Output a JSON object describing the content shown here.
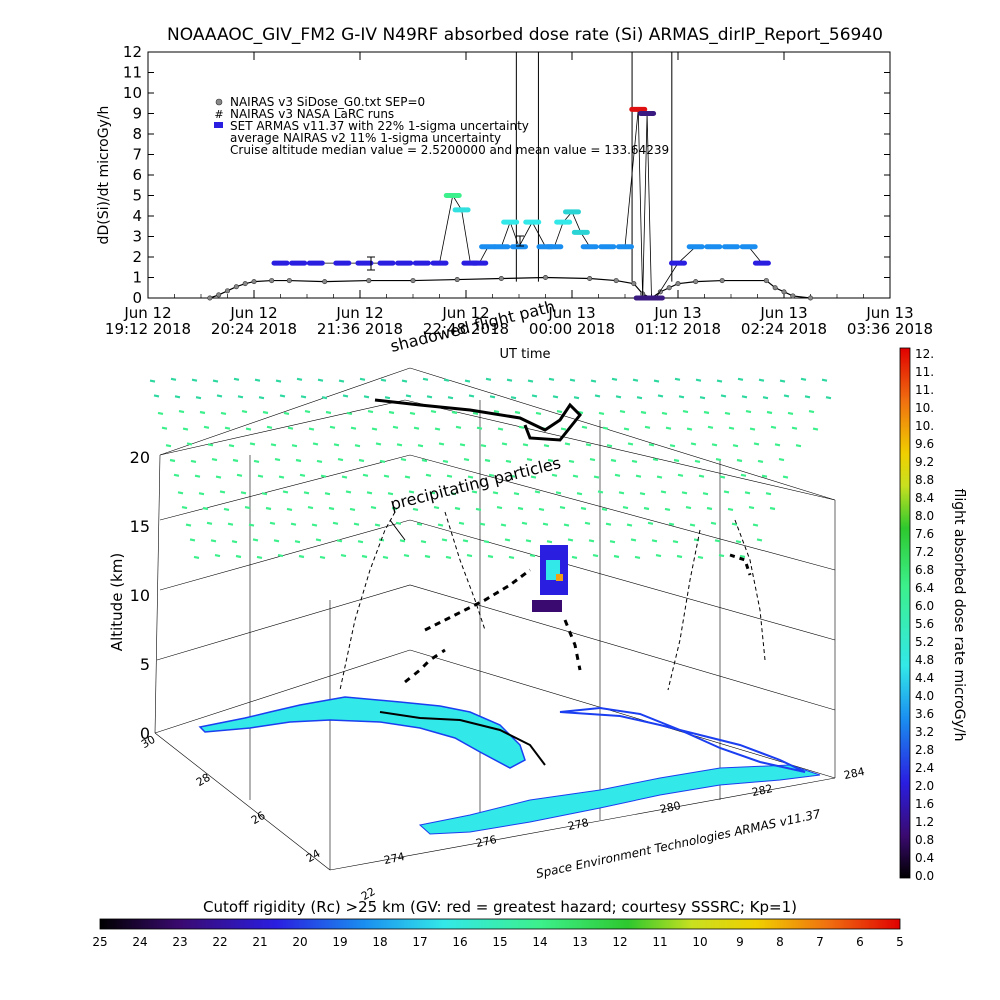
{
  "title": "NOAAAOC_GIV_FM2 G-IV    N49RF  absorbed dose rate (Si) ARMAS_dirIP_Report_56940",
  "legend": {
    "items": [
      {
        "symbol": "circle",
        "label": "NAIRAS v3 SiDose_G0.txt SEP=0"
      },
      {
        "symbol": "hash",
        "label": "NAIRAS v3 NASA LaRC runs"
      },
      {
        "symbol": "square",
        "label": "SET ARMAS v11.37 with 22% 1-sigma uncertainty"
      },
      {
        "symbol": "none",
        "label": "average NAIRAS v2 11% 1-sigma uncertainty"
      },
      {
        "symbol": "none",
        "label": "Cruise altitude median value = 2.5200000 and mean value = 133.64239"
      }
    ]
  },
  "chart_data": [
    {
      "type": "scatter",
      "ylabel": "dD(Si)/dt microGy/h",
      "xlabel": "UT time",
      "ylim": [
        0,
        12
      ],
      "xlim": [
        0,
        8.4
      ],
      "yticks": [
        "0",
        "1",
        "2",
        "3",
        "4",
        "5",
        "6",
        "7",
        "8",
        "9",
        "10",
        "11",
        "12"
      ],
      "xticks": [
        {
          "day": "Jun 12",
          "time": "19:12 2018"
        },
        {
          "day": "Jun 12",
          "time": "20:24 2018"
        },
        {
          "day": "Jun 12",
          "time": "21:36 2018"
        },
        {
          "day": "Jun 12",
          "time": "22:48 2018"
        },
        {
          "day": "Jun 13",
          "time": "00:00 2018"
        },
        {
          "day": "Jun 13",
          "time": "01:12 2018"
        },
        {
          "day": "Jun 13",
          "time": "02:24 2018"
        },
        {
          "day": "Jun 13",
          "time": "03:36 2018"
        }
      ],
      "model_x": [
        0.7,
        0.8,
        0.9,
        1.0,
        1.1,
        1.2,
        1.4,
        1.6,
        2.0,
        2.5,
        3.0,
        3.5,
        4.0,
        4.5,
        5.0,
        5.3,
        5.5,
        5.6,
        5.7,
        5.8,
        5.9,
        6.0,
        6.2,
        6.5,
        7.0,
        7.1,
        7.2,
        7.3,
        7.5
      ],
      "model_y": [
        0,
        0.15,
        0.35,
        0.55,
        0.7,
        0.8,
        0.85,
        0.85,
        0.8,
        0.85,
        0.85,
        0.9,
        0.95,
        1.0,
        0.95,
        0.85,
        0.7,
        0.2,
        0,
        0.3,
        0.5,
        0.7,
        0.8,
        0.85,
        0.85,
        0.5,
        0.3,
        0.1,
        0
      ],
      "armas_x": [
        1.5,
        1.7,
        1.9,
        2.2,
        2.45,
        2.7,
        2.9,
        3.1,
        3.3,
        3.45,
        3.55,
        3.65,
        3.75,
        3.85,
        4.0,
        4.1,
        4.2,
        4.35,
        4.5,
        4.6,
        4.7,
        4.8,
        4.9,
        5.0,
        5.2,
        5.4,
        5.55,
        5.6,
        5.65,
        5.7,
        5.75,
        6.0,
        6.2,
        6.4,
        6.6,
        6.8,
        6.95
      ],
      "armas_y": [
        1.7,
        1.7,
        1.7,
        1.7,
        1.7,
        1.7,
        1.7,
        1.7,
        1.7,
        5.0,
        4.3,
        1.7,
        1.7,
        2.5,
        2.5,
        3.7,
        2.5,
        3.7,
        2.5,
        2.5,
        3.7,
        4.2,
        3.2,
        2.5,
        2.5,
        2.5,
        9.2,
        0,
        9.0,
        0,
        0,
        1.7,
        2.5,
        2.5,
        2.5,
        2.5,
        1.7
      ],
      "armas_colors": [
        "#2a1ee0",
        "#2a1ee0",
        "#2a1ee0",
        "#2a1ee0",
        "#2a1ee0",
        "#2a1ee0",
        "#2a1ee0",
        "#2a1ee0",
        "#2a1ee0",
        "#3cf08c",
        "#33e0e0",
        "#2a1ee0",
        "#2a1ee0",
        "#1a8ef0",
        "#1a8ef0",
        "#33e8e8",
        "#1a8ef0",
        "#33e8e8",
        "#1a8ef0",
        "#1a8ef0",
        "#33e8e8",
        "#2ad4d4",
        "#2ad4d4",
        "#1a8ef0",
        "#1a8ef0",
        "#1a8ef0",
        "#e01010",
        "#3a1a80",
        "#3a1a80",
        "#3a1a80",
        "#3a1a80",
        "#2a1ee0",
        "#1a8ef0",
        "#1a8ef0",
        "#1a8ef0",
        "#1a8ef0",
        "#2a1ee0"
      ],
      "spikes_x": [
        4.17,
        4.42,
        5.48,
        5.93
      ],
      "colors": {
        "model": "#555555",
        "armas": "#2a1ee0",
        "axis": "#000000"
      }
    },
    {
      "type": "scatter",
      "dimension": "3d",
      "zlabel": "Altitude (km)",
      "zlim": [
        0,
        20
      ],
      "zticks": [
        "0",
        "5",
        "10",
        "15",
        "20"
      ],
      "lat_ticks": [
        "22",
        "24",
        "26",
        "28",
        "30"
      ],
      "lon_ticks": [
        "274",
        "276",
        "278",
        "280",
        "282",
        "284"
      ],
      "annotations": [
        "shadowed flight path",
        "precipitating particles"
      ],
      "credit": "Space Environment Technologies ARMAS v11.37"
    }
  ],
  "colorbars": [
    {
      "title": "flight absorbed dose rate microGy/h",
      "orientation": "vertical",
      "labels": [
        "12.",
        "11.",
        "11.",
        "10.",
        "10.",
        "9.6",
        "9.2",
        "8.8",
        "8.4",
        "8.0",
        "7.6",
        "7.2",
        "6.8",
        "6.4",
        "6.0",
        "5.6",
        "5.2",
        "4.8",
        "4.4",
        "4.0",
        "3.6",
        "3.2",
        "2.8",
        "2.4",
        "2.0",
        "1.6",
        "1.2",
        "0.8",
        "0.4",
        "0.0"
      ]
    },
    {
      "title": "Cutoff rigidity (Rc) >25 km (GV: red = greatest hazard; courtesy SSSRC; Kp=1)",
      "orientation": "horizontal",
      "labels": [
        "25",
        "24",
        "23",
        "22",
        "21",
        "20",
        "19",
        "18",
        "17",
        "16",
        "15",
        "14",
        "13",
        "12",
        "11",
        "10",
        "9",
        "8",
        "7",
        "6",
        "5"
      ]
    }
  ]
}
